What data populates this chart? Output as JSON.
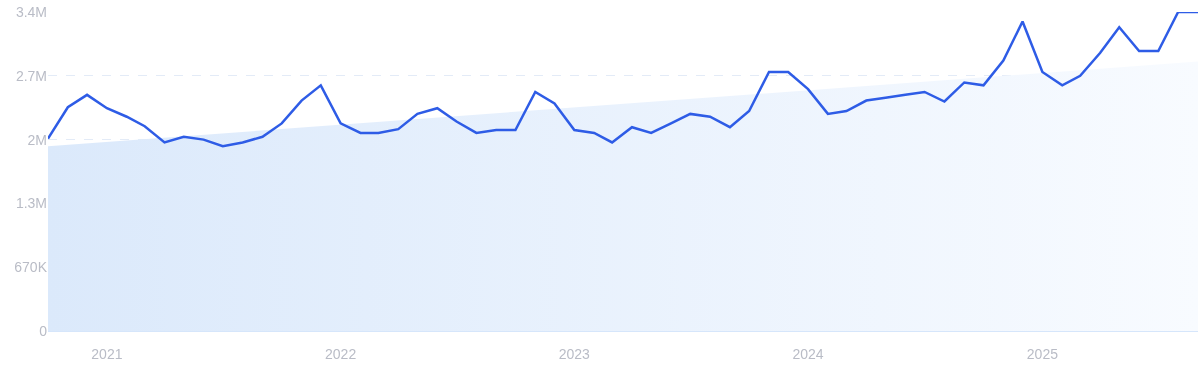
{
  "chart_data": {
    "type": "line",
    "x": [
      "2020-10",
      "2020-11",
      "2020-12",
      "2021-01",
      "2021-02",
      "2021-03",
      "2021-04",
      "2021-05",
      "2021-06",
      "2021-07",
      "2021-08",
      "2021-09",
      "2021-10",
      "2021-11",
      "2021-12",
      "2022-01",
      "2022-02",
      "2022-03",
      "2022-04",
      "2022-05",
      "2022-06",
      "2022-07",
      "2022-08",
      "2022-09",
      "2022-10",
      "2022-11",
      "2022-12",
      "2023-01",
      "2023-02",
      "2023-03",
      "2023-04",
      "2023-05",
      "2023-06",
      "2023-07",
      "2023-08",
      "2023-09",
      "2023-10",
      "2023-11",
      "2023-12",
      "2024-01",
      "2024-02",
      "2024-03",
      "2024-04",
      "2024-05",
      "2024-06",
      "2024-07",
      "2024-08",
      "2024-09",
      "2024-10",
      "2024-11",
      "2024-12",
      "2025-01",
      "2025-02",
      "2025-03",
      "2025-04",
      "2025-05",
      "2025-06",
      "2025-07",
      "2025-08",
      "2025-09"
    ],
    "series": [
      {
        "type": "area",
        "color": "#dbe9fb",
        "x": [
          "2020-10",
          "2025-09"
        ],
        "values": [
          1940000,
          2830000
        ]
      },
      {
        "color": "#2e5ce6",
        "values": [
          2020000,
          2350000,
          2480000,
          2340000,
          2250000,
          2150000,
          1980000,
          2040000,
          2010000,
          1940000,
          1980000,
          2040000,
          2180000,
          2420000,
          2580000,
          2180000,
          2080000,
          2080000,
          2120000,
          2280000,
          2340000,
          2200000,
          2080000,
          2110000,
          2110000,
          2510000,
          2390000,
          2110000,
          2080000,
          1980000,
          2140000,
          2080000,
          2180000,
          2280000,
          2250000,
          2140000,
          2310000,
          2720000,
          2720000,
          2540000,
          2280000,
          2310000,
          2420000,
          2450000,
          2480000,
          2510000,
          2410000,
          2610000,
          2580000,
          2840000,
          3250000,
          2720000,
          2580000,
          2680000,
          2920000,
          3190000,
          2940000,
          2940000,
          3350000,
          3350000
        ]
      }
    ],
    "xlim": [
      "2020-10",
      "2025-09"
    ],
    "xticks": [
      "2021",
      "2022",
      "2023",
      "2024",
      "2025"
    ],
    "ylim": [
      0,
      3350000
    ],
    "yticks": [
      0,
      {
        "value": 670000,
        "label": "670K"
      },
      {
        "value": 1340000,
        "label": "1.3M"
      },
      {
        "value": 2010000,
        "label": "2M"
      },
      {
        "value": 2680000,
        "label": "2.7M"
      },
      {
        "value": 3350000,
        "label": "3.4M"
      }
    ],
    "grid": "y",
    "marker": "none",
    "line_style": "solid"
  }
}
